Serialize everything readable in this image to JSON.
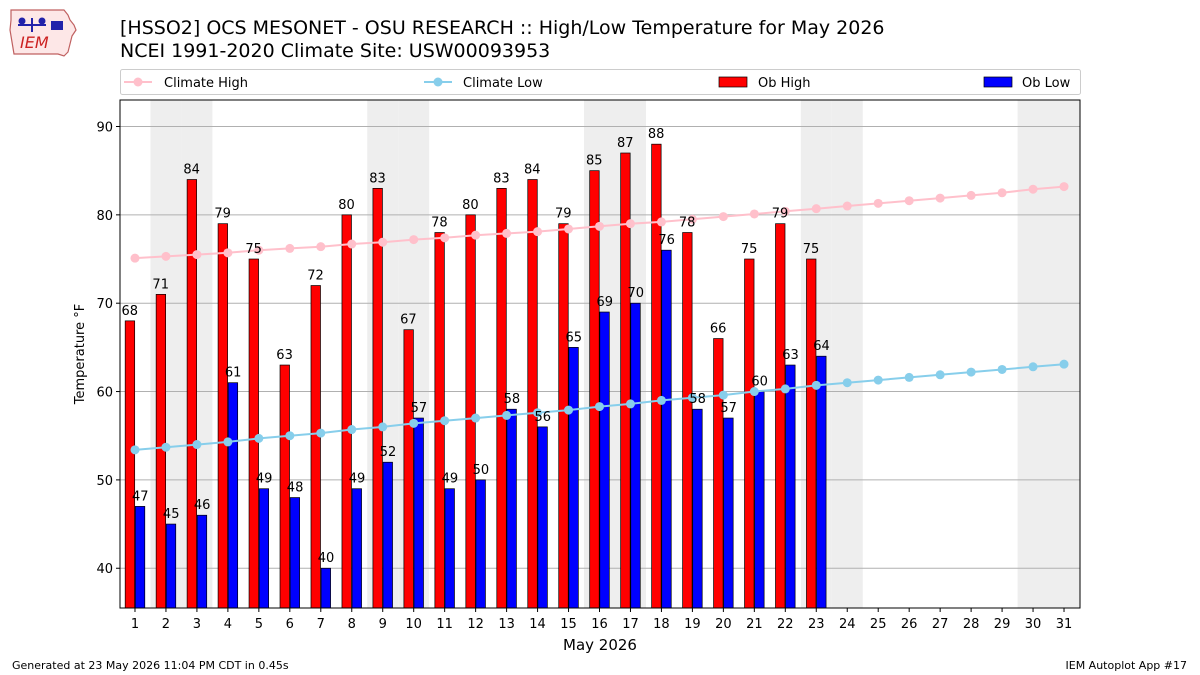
{
  "header": {
    "title": "[HSSO2] OCS MESONET - OSU RESEARCH :: High/Low Temperature for May 2026",
    "subtitle": "NCEI 1991-2020 Climate Site: USW00093953",
    "logo_text": "IEM"
  },
  "footer": {
    "generated": "Generated at 23 May 2026 11:04 PM CDT in 0.45s",
    "app": "IEM Autoplot App #17"
  },
  "colors": {
    "ob_high": "#ff0000",
    "ob_low": "#0000ff",
    "climate_high": "#ffc0cb",
    "climate_low": "#87ceeb",
    "weekend_shade": "#eeeeee",
    "grid": "#b0b0b0"
  },
  "chart_data": {
    "type": "bar",
    "xlabel": "May 2026",
    "ylabel": "Temperature °F",
    "ylim": [
      35.5,
      93
    ],
    "yticks": [
      40,
      50,
      60,
      70,
      80,
      90
    ],
    "categories": [
      "1",
      "2",
      "3",
      "4",
      "5",
      "6",
      "7",
      "8",
      "9",
      "10",
      "11",
      "12",
      "13",
      "14",
      "15",
      "16",
      "17",
      "18",
      "19",
      "20",
      "21",
      "22",
      "23",
      "24",
      "25",
      "26",
      "27",
      "28",
      "29",
      "30",
      "31"
    ],
    "weekend_shaded_days": [
      2,
      3,
      9,
      10,
      16,
      17,
      23,
      24,
      30,
      31
    ],
    "grid": "horizontal",
    "legend": {
      "placement": "top",
      "entries": [
        "Climate High",
        "Climate Low",
        "Ob High",
        "Ob Low"
      ]
    },
    "series": [
      {
        "name": "Ob High",
        "kind": "bar",
        "values": [
          68,
          71,
          84,
          79,
          75,
          63,
          72,
          80,
          83,
          67,
          78,
          80,
          83,
          84,
          79,
          85,
          87,
          88,
          78,
          66,
          75,
          79,
          75,
          null,
          null,
          null,
          null,
          null,
          null,
          null,
          null
        ]
      },
      {
        "name": "Ob Low",
        "kind": "bar",
        "values": [
          47,
          45,
          46,
          61,
          49,
          48,
          40,
          49,
          52,
          57,
          49,
          50,
          58,
          56,
          65,
          69,
          70,
          76,
          58,
          57,
          60,
          63,
          64,
          null,
          null,
          null,
          null,
          null,
          null,
          null,
          null
        ]
      },
      {
        "name": "Climate High",
        "kind": "line",
        "values": [
          75.1,
          75.3,
          75.5,
          75.7,
          76.0,
          76.2,
          76.4,
          76.7,
          76.9,
          77.2,
          77.4,
          77.7,
          77.9,
          78.1,
          78.4,
          78.7,
          79.0,
          79.2,
          79.5,
          79.8,
          80.1,
          80.4,
          80.7,
          81.0,
          81.3,
          81.6,
          81.9,
          82.2,
          82.5,
          82.9,
          83.2
        ]
      },
      {
        "name": "Climate Low",
        "kind": "line",
        "values": [
          53.4,
          53.7,
          54.0,
          54.3,
          54.7,
          55.0,
          55.3,
          55.7,
          56.0,
          56.4,
          56.7,
          57.0,
          57.3,
          57.6,
          57.9,
          58.3,
          58.6,
          59.0,
          59.3,
          59.6,
          60.0,
          60.3,
          60.7,
          61.0,
          61.3,
          61.6,
          61.9,
          62.2,
          62.5,
          62.8,
          63.1
        ]
      }
    ]
  }
}
